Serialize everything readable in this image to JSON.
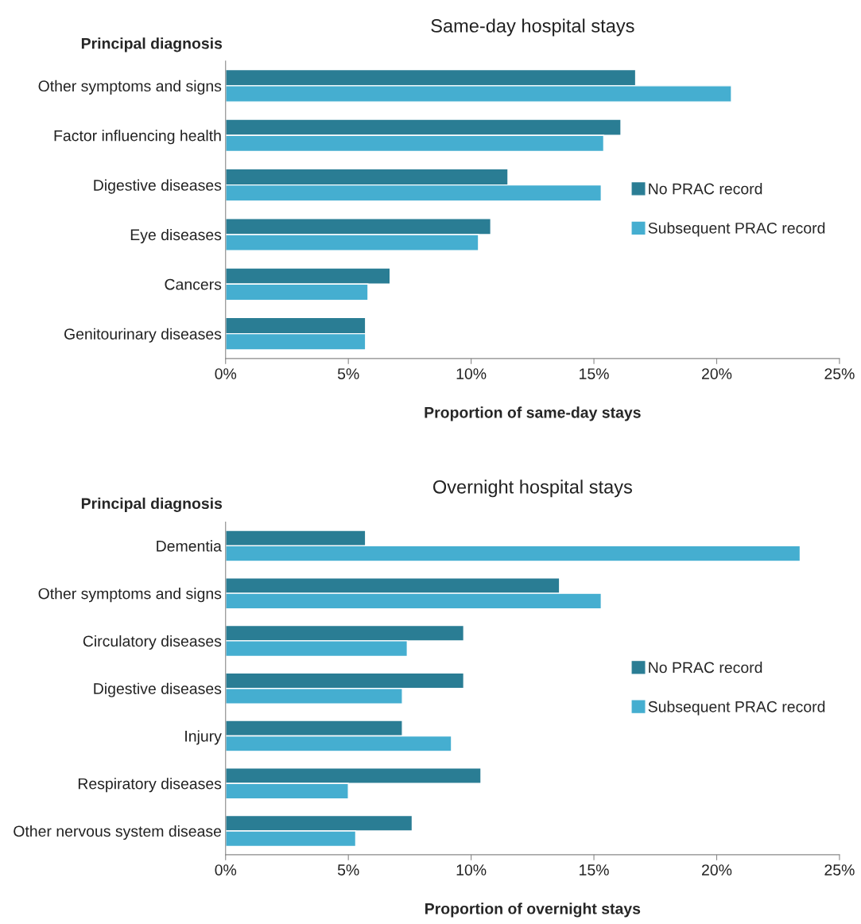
{
  "chart_data": [
    {
      "type": "bar",
      "orientation": "horizontal",
      "title": "Same-day hospital stays",
      "ylabel": "Principal diagnosis",
      "xlabel": "Proportion of same-day stays",
      "categories": [
        "Other symptoms and signs",
        "Factor influencing health",
        "Digestive diseases",
        "Eye diseases",
        "Cancers",
        "Genitourinary diseases"
      ],
      "series": [
        {
          "name": "No PRAC record",
          "color": "#2a7d94",
          "values": [
            16.7,
            16.1,
            11.5,
            10.8,
            6.7,
            5.7
          ]
        },
        {
          "name": "Subsequent PRAC record",
          "color": "#45aed0",
          "values": [
            20.6,
            15.4,
            15.3,
            10.3,
            5.8,
            5.7
          ]
        }
      ],
      "xlim": [
        0,
        25
      ],
      "xticks": [
        {
          "value": 0,
          "label": "0%"
        },
        {
          "value": 5,
          "label": "5%"
        },
        {
          "value": 10,
          "label": "10%"
        },
        {
          "value": 15,
          "label": "15%"
        },
        {
          "value": 20,
          "label": "20%"
        },
        {
          "value": 25,
          "label": "25%"
        }
      ],
      "grid": false,
      "legend": "right"
    },
    {
      "type": "bar",
      "orientation": "horizontal",
      "title": "Overnight hospital stays",
      "ylabel": "Principal diagnosis",
      "xlabel": "Proportion of overnight stays",
      "categories": [
        "Dementia",
        "Other symptoms and signs",
        "Circulatory diseases",
        "Digestive diseases",
        "Injury",
        "Respiratory diseases",
        "Other nervous system disease"
      ],
      "series": [
        {
          "name": "No PRAC record",
          "color": "#2a7d94",
          "values": [
            5.7,
            13.6,
            9.7,
            9.7,
            7.2,
            10.4,
            7.6
          ]
        },
        {
          "name": "Subsequent PRAC record",
          "color": "#45aed0",
          "values": [
            23.4,
            15.3,
            7.4,
            7.2,
            9.2,
            5.0,
            5.3
          ]
        }
      ],
      "xlim": [
        0,
        25
      ],
      "xticks": [
        {
          "value": 0,
          "label": "0%"
        },
        {
          "value": 5,
          "label": "5%"
        },
        {
          "value": 10,
          "label": "10%"
        },
        {
          "value": 15,
          "label": "15%"
        },
        {
          "value": 20,
          "label": "20%"
        },
        {
          "value": 25,
          "label": "25%"
        }
      ],
      "grid": false,
      "legend": "right"
    }
  ]
}
